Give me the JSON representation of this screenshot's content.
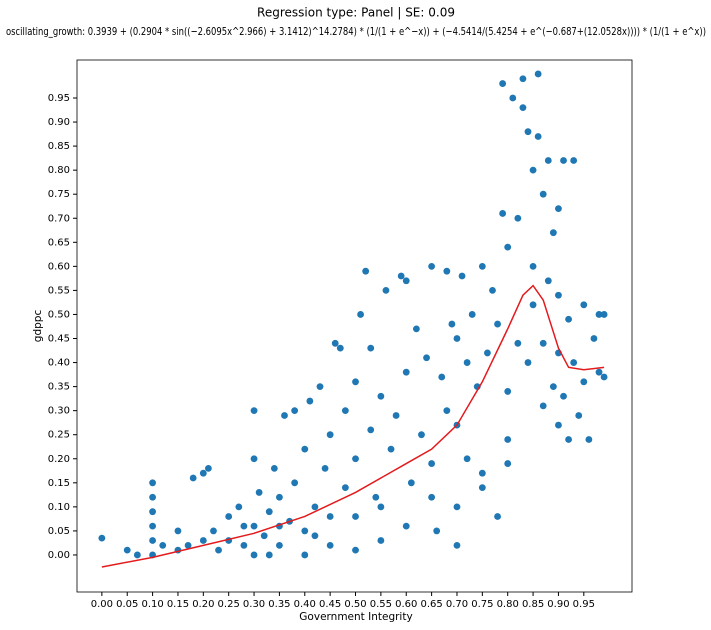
{
  "chart_data": {
    "type": "scatter",
    "title": "Regression type: Panel | SE: 0.09",
    "subtitle": "oscillating_growth: 0.3939 + (0.2904 * sin((−2.6095x^2.966) + 3.1412)^14.2784) * (1/(1 + e^−x)) + (−4.5414/(5.4254 + e^(−0.687+(12.0528x)))) * (1/(1 + e^x))",
    "xlabel": "Government Integrity",
    "ylabel": "gdppc",
    "xlim": [
      -0.049,
      1.045
    ],
    "ylim": [
      -0.077,
      1.029
    ],
    "xticks": [
      {
        "value": 0,
        "label": "0.00"
      },
      0.05,
      {
        "value": 0.1,
        "label": "0.10"
      },
      0.15,
      {
        "value": 0.2,
        "label": "0.20"
      },
      0.25,
      {
        "value": 0.3,
        "label": "0.30"
      },
      0.35,
      {
        "value": 0.4,
        "label": "0.40"
      },
      0.45,
      {
        "value": 0.5,
        "label": "0.50"
      },
      0.55,
      {
        "value": 0.6,
        "label": "0.60"
      },
      0.65,
      {
        "value": 0.7,
        "label": "0.70"
      },
      0.75,
      {
        "value": 0.8,
        "label": "0.80"
      },
      0.85,
      {
        "value": 0.9,
        "label": "0.90"
      },
      0.95
    ],
    "yticks": [
      {
        "value": 0,
        "label": "0.00"
      },
      0.05,
      {
        "value": 0.1,
        "label": "0.10"
      },
      0.15,
      {
        "value": 0.2,
        "label": "0.20"
      },
      0.25,
      {
        "value": 0.3,
        "label": "0.30"
      },
      0.35,
      {
        "value": 0.4,
        "label": "0.40"
      },
      0.45,
      {
        "value": 0.5,
        "label": "0.50"
      },
      0.55,
      {
        "value": 0.6,
        "label": "0.60"
      },
      0.65,
      {
        "value": 0.7,
        "label": "0.70"
      },
      0.75,
      {
        "value": 0.8,
        "label": "0.80"
      },
      0.85,
      {
        "value": 0.9,
        "label": "0.90"
      },
      0.95
    ],
    "series": [
      {
        "type": "scatter",
        "color": "#1f77b4",
        "x": [
          0.0,
          0.05,
          0.07,
          0.1,
          0.1,
          0.1,
          0.1,
          0.1,
          0.1,
          0.12,
          0.15,
          0.15,
          0.17,
          0.18,
          0.2,
          0.21,
          0.2,
          0.22,
          0.23,
          0.25,
          0.25,
          0.27,
          0.28,
          0.3,
          0.3,
          0.3,
          0.31,
          0.32,
          0.33,
          0.34,
          0.35,
          0.35,
          0.36,
          0.37,
          0.38,
          0.38,
          0.4,
          0.4,
          0.41,
          0.42,
          0.43,
          0.44,
          0.45,
          0.45,
          0.46,
          0.47,
          0.48,
          0.48,
          0.5,
          0.5,
          0.5,
          0.51,
          0.52,
          0.53,
          0.53,
          0.54,
          0.55,
          0.55,
          0.56,
          0.57,
          0.58,
          0.59,
          0.6,
          0.6,
          0.61,
          0.62,
          0.63,
          0.64,
          0.65,
          0.65,
          0.66,
          0.67,
          0.68,
          0.68,
          0.69,
          0.7,
          0.7,
          0.7,
          0.71,
          0.72,
          0.72,
          0.73,
          0.74,
          0.75,
          0.75,
          0.76,
          0.77,
          0.78,
          0.78,
          0.79,
          0.79,
          0.8,
          0.8,
          0.8,
          0.81,
          0.82,
          0.82,
          0.83,
          0.83,
          0.84,
          0.84,
          0.85,
          0.85,
          0.85,
          0.86,
          0.86,
          0.87,
          0.87,
          0.87,
          0.88,
          0.88,
          0.89,
          0.89,
          0.9,
          0.9,
          0.9,
          0.9,
          0.91,
          0.91,
          0.92,
          0.92,
          0.93,
          0.93,
          0.94,
          0.95,
          0.95,
          0.96,
          0.97,
          0.98,
          0.98,
          0.99,
          0.99,
          0.3,
          0.35,
          0.4,
          0.45,
          0.5,
          0.55,
          0.6,
          0.65,
          0.7,
          0.75,
          0.8,
          0.28,
          0.33,
          0.42
        ],
        "values": [
          0.035,
          0.01,
          0.0,
          0.0,
          0.03,
          0.06,
          0.09,
          0.12,
          0.15,
          0.02,
          0.01,
          0.05,
          0.02,
          0.16,
          0.17,
          0.18,
          0.03,
          0.05,
          0.01,
          0.08,
          0.03,
          0.1,
          0.02,
          0.06,
          0.3,
          0.2,
          0.13,
          0.04,
          0.09,
          0.18,
          0.12,
          0.02,
          0.29,
          0.07,
          0.3,
          0.15,
          0.05,
          0.22,
          0.32,
          0.1,
          0.35,
          0.18,
          0.02,
          0.25,
          0.44,
          0.43,
          0.14,
          0.3,
          0.08,
          0.2,
          0.36,
          0.5,
          0.59,
          0.26,
          0.43,
          0.12,
          0.03,
          0.33,
          0.55,
          0.22,
          0.29,
          0.58,
          0.57,
          0.38,
          0.15,
          0.47,
          0.25,
          0.41,
          0.6,
          0.19,
          0.05,
          0.37,
          0.59,
          0.3,
          0.48,
          0.1,
          0.27,
          0.45,
          0.58,
          0.4,
          0.2,
          0.5,
          0.35,
          0.6,
          0.14,
          0.42,
          0.55,
          0.08,
          0.48,
          0.98,
          0.71,
          0.64,
          0.34,
          0.24,
          0.95,
          0.7,
          0.44,
          0.99,
          0.93,
          0.88,
          0.4,
          0.8,
          0.6,
          0.52,
          1.0,
          0.87,
          0.75,
          0.44,
          0.31,
          0.82,
          0.57,
          0.35,
          0.67,
          0.72,
          0.54,
          0.42,
          0.27,
          0.82,
          0.33,
          0.49,
          0.24,
          0.82,
          0.4,
          0.29,
          0.52,
          0.36,
          0.24,
          0.45,
          0.5,
          0.38,
          0.5,
          0.37,
          0.0,
          0.06,
          0.0,
          0.08,
          0.01,
          0.1,
          0.06,
          0.12,
          0.02,
          0.17,
          0.19,
          0.06,
          0.0,
          0.04
        ]
      },
      {
        "type": "line",
        "color": "#e41a1c",
        "x": [
          0,
          0.1,
          0.2,
          0.3,
          0.4,
          0.5,
          0.6,
          0.65,
          0.7,
          0.75,
          0.8,
          0.83,
          0.85,
          0.87,
          0.9,
          0.92,
          0.95,
          0.99
        ],
        "values": [
          -0.025,
          -0.005,
          0.02,
          0.045,
          0.08,
          0.13,
          0.19,
          0.22,
          0.27,
          0.36,
          0.47,
          0.54,
          0.56,
          0.53,
          0.43,
          0.39,
          0.385,
          0.39
        ]
      }
    ]
  }
}
